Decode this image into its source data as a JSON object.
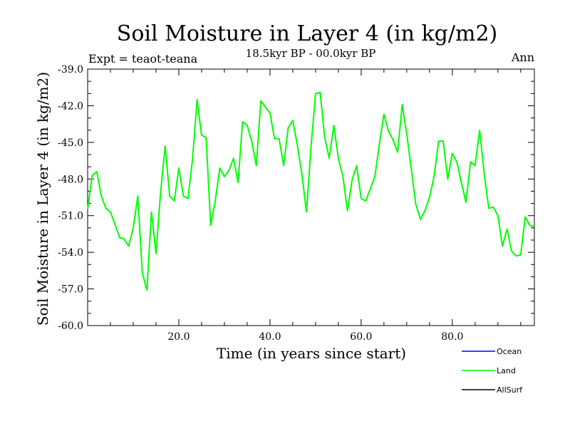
{
  "chart_data": {
    "type": "line",
    "title": "Soil Moisture in Layer 4 (in kg/m2)",
    "subtitle": "18.5kyr BP - 00.0kyr BP",
    "left_label": "Expt = teaot-teana",
    "right_label": "Ann",
    "xlabel": "Time (in years since start)",
    "ylabel": "Soil Moisture in Layer 4 (in kg/m2)",
    "xlim": [
      0,
      98
    ],
    "ylim": [
      -60.0,
      -39.0
    ],
    "x_ticks": [
      20.0,
      40.0,
      60.0,
      80.0
    ],
    "x_tick_labels": [
      "20.0",
      "40.0",
      "60.0",
      "80.0"
    ],
    "y_ticks": [
      -60.0,
      -57.0,
      -54.0,
      -51.0,
      -48.0,
      -45.0,
      -42.0,
      -39.0
    ],
    "y_tick_labels": [
      "-60.0",
      "-57.0",
      "-54.0",
      "-51.0",
      "-48.0",
      "-45.0",
      "-42.0",
      "-39.0"
    ],
    "legend": [
      {
        "name": "Ocean",
        "color": "#0000ff"
      },
      {
        "name": "Land",
        "color": "#00ff00"
      },
      {
        "name": "AllSurf",
        "color": "#000000"
      }
    ],
    "series": [
      {
        "name": "Land",
        "color": "#00ff00",
        "x": [
          0,
          1,
          2,
          3,
          4,
          5,
          6,
          7,
          8,
          9,
          10,
          11,
          12,
          13,
          14,
          15,
          16,
          17,
          18,
          19,
          20,
          21,
          22,
          23,
          24,
          25,
          26,
          27,
          28,
          29,
          30,
          31,
          32,
          33,
          34,
          35,
          36,
          37,
          38,
          39,
          40,
          41,
          42,
          43,
          44,
          45,
          46,
          47,
          48,
          49,
          50,
          51,
          52,
          53,
          54,
          55,
          56,
          57,
          58,
          59,
          60,
          61,
          62,
          63,
          64,
          65,
          66,
          67,
          68,
          69,
          70,
          71,
          72,
          73,
          74,
          75,
          76,
          77,
          78,
          79,
          80,
          81,
          82,
          83,
          84,
          85,
          86,
          87,
          88,
          89,
          90,
          91,
          92,
          93,
          94,
          95,
          96,
          97,
          98
        ],
        "values": [
          -50.5,
          -47.7,
          -47.4,
          -49.4,
          -50.4,
          -50.7,
          -51.7,
          -52.8,
          -52.9,
          -53.5,
          -52.0,
          -49.4,
          -55.7,
          -57.1,
          -50.7,
          -54.1,
          -49.1,
          -45.3,
          -49.4,
          -49.8,
          -47.1,
          -49.4,
          -49.6,
          -46.4,
          -41.5,
          -44.4,
          -44.6,
          -51.8,
          -49.8,
          -47.1,
          -47.8,
          -47.3,
          -46.3,
          -48.3,
          -43.3,
          -43.6,
          -44.9,
          -46.9,
          -41.6,
          -42.1,
          -42.6,
          -44.7,
          -44.7,
          -46.9,
          -43.8,
          -43.2,
          -45.2,
          -47.6,
          -50.7,
          -45.4,
          -41.0,
          -40.9,
          -44.6,
          -46.3,
          -43.6,
          -46.3,
          -47.8,
          -50.6,
          -48.1,
          -46.9,
          -49.6,
          -49.8,
          -48.8,
          -47.8,
          -45.1,
          -42.7,
          -44.1,
          -44.8,
          -45.8,
          -41.9,
          -44.3,
          -47.2,
          -50.1,
          -51.3,
          -50.6,
          -49.5,
          -47.8,
          -44.9,
          -44.9,
          -48.0,
          -45.9,
          -46.6,
          -48.3,
          -49.9,
          -46.6,
          -46.9,
          -44.0,
          -47.6,
          -50.4,
          -50.3,
          -51.0,
          -53.5,
          -52.1,
          -53.9,
          -54.3,
          -54.2,
          -51.1,
          -51.8,
          -51.9
        ]
      }
    ]
  }
}
